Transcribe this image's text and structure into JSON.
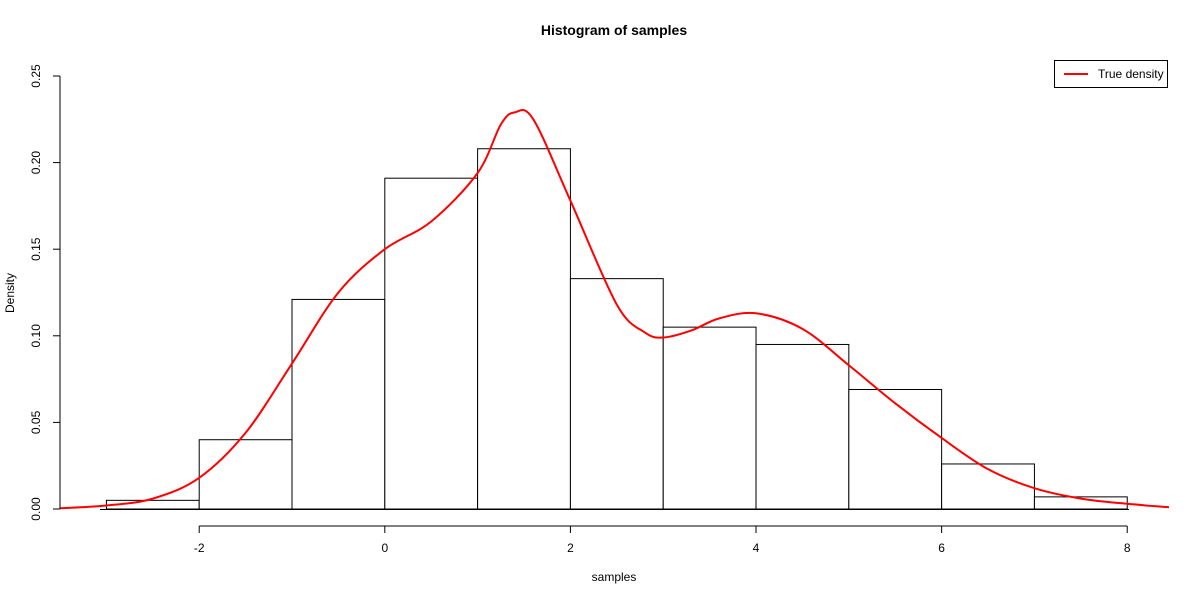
{
  "chart_data": {
    "type": "bar",
    "title": "Histogram of samples",
    "xlabel": "samples",
    "ylabel": "Density",
    "xlim": [
      -3.5,
      8.45
    ],
    "ylim": [
      0,
      0.25
    ],
    "x_ticks": [
      "-2",
      "0",
      "2",
      "4",
      "6",
      "8"
    ],
    "y_ticks": [
      "0.00",
      "0.05",
      "0.10",
      "0.15",
      "0.20",
      "0.25"
    ],
    "bins": [
      {
        "x0": -3,
        "x1": -2,
        "density": 0.005
      },
      {
        "x0": -2,
        "x1": -1,
        "density": 0.04
      },
      {
        "x0": -1,
        "x1": 0,
        "density": 0.121
      },
      {
        "x0": 0,
        "x1": 1,
        "density": 0.191
      },
      {
        "x0": 1,
        "x1": 2,
        "density": 0.208
      },
      {
        "x0": 2,
        "x1": 3,
        "density": 0.133
      },
      {
        "x0": 3,
        "x1": 4,
        "density": 0.105
      },
      {
        "x0": 4,
        "x1": 5,
        "density": 0.095
      },
      {
        "x0": 5,
        "x1": 6,
        "density": 0.069
      },
      {
        "x0": 6,
        "x1": 7,
        "density": 0.026
      },
      {
        "x0": 7,
        "x1": 8,
        "density": 0.007
      }
    ],
    "series": [
      {
        "name": "True density",
        "color": "#ff0000",
        "x": [
          -3.5,
          -3,
          -2.5,
          -2,
          -1.5,
          -1,
          -0.5,
          0,
          0.5,
          1,
          1.25,
          1.4,
          1.6,
          2,
          2.5,
          2.8,
          3,
          3.3,
          3.6,
          4,
          4.5,
          5,
          5.5,
          6,
          6.5,
          7,
          7.5,
          8,
          8.45
        ],
        "y": [
          0.0004,
          0.002,
          0.006,
          0.018,
          0.044,
          0.084,
          0.125,
          0.15,
          0.166,
          0.194,
          0.222,
          0.229,
          0.225,
          0.178,
          0.118,
          0.102,
          0.099,
          0.103,
          0.11,
          0.113,
          0.104,
          0.083,
          0.061,
          0.041,
          0.023,
          0.012,
          0.006,
          0.003,
          0.001
        ]
      }
    ],
    "legend_position": "top-right"
  }
}
